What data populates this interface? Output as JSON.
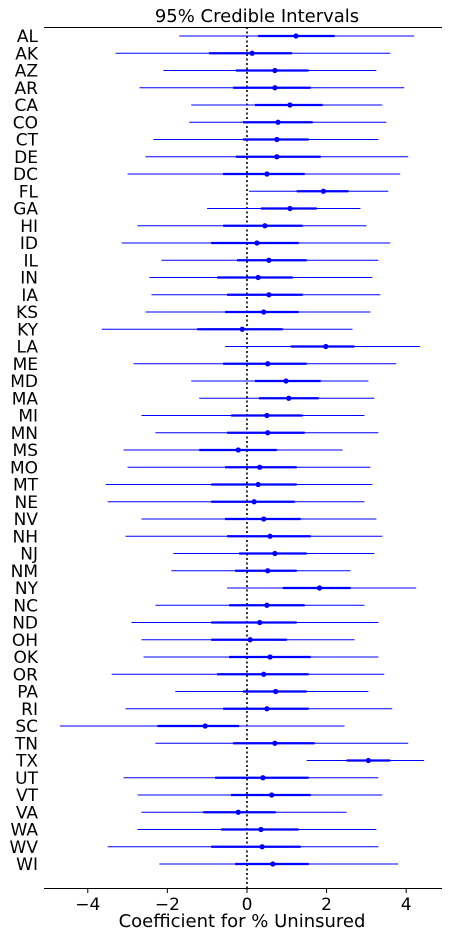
{
  "chart_data": {
    "type": "forest",
    "title": "95% Credible Intervals",
    "xlabel": "Coefficient for % Uninsured",
    "xlim": [
      -5.1,
      4.9
    ],
    "xticks": [
      -4,
      -2,
      0,
      2,
      4
    ],
    "xtick_labels": [
      "−4",
      "−2",
      "0",
      "2",
      "4"
    ],
    "reference_line_x": 0,
    "colors": {
      "interval": "#0000ff",
      "reference": "#000000"
    },
    "states": [
      {
        "label": "AL",
        "mean": 1.23,
        "inner": [
          0.28,
          2.2
        ],
        "outer": [
          -1.7,
          4.2
        ]
      },
      {
        "label": "AK",
        "mean": 0.13,
        "inner": [
          -0.95,
          1.13
        ],
        "outer": [
          -3.3,
          3.6
        ]
      },
      {
        "label": "AZ",
        "mean": 0.7,
        "inner": [
          -0.28,
          1.55
        ],
        "outer": [
          -2.1,
          3.25
        ]
      },
      {
        "label": "AR",
        "mean": 0.7,
        "inner": [
          -0.35,
          1.6
        ],
        "outer": [
          -2.7,
          3.95
        ]
      },
      {
        "label": "CA",
        "mean": 1.08,
        "inner": [
          0.2,
          1.9
        ],
        "outer": [
          -1.4,
          3.4
        ]
      },
      {
        "label": "CO",
        "mean": 0.78,
        "inner": [
          -0.1,
          1.65
        ],
        "outer": [
          -1.45,
          3.5
        ]
      },
      {
        "label": "CT",
        "mean": 0.75,
        "inner": [
          -0.1,
          1.55
        ],
        "outer": [
          -2.35,
          3.3
        ]
      },
      {
        "label": "DE",
        "mean": 0.75,
        "inner": [
          -0.28,
          1.85
        ],
        "outer": [
          -2.55,
          4.05
        ]
      },
      {
        "label": "DC",
        "mean": 0.5,
        "inner": [
          -0.6,
          1.45
        ],
        "outer": [
          -3.0,
          3.85
        ]
      },
      {
        "label": "FL",
        "mean": 1.92,
        "inner": [
          1.25,
          2.55
        ],
        "outer": [
          0.05,
          3.55
        ]
      },
      {
        "label": "GA",
        "mean": 1.08,
        "inner": [
          0.35,
          1.75
        ],
        "outer": [
          -1.0,
          2.85
        ]
      },
      {
        "label": "HI",
        "mean": 0.45,
        "inner": [
          -0.6,
          1.4
        ],
        "outer": [
          -2.75,
          3.0
        ]
      },
      {
        "label": "ID",
        "mean": 0.25,
        "inner": [
          -0.9,
          1.3
        ],
        "outer": [
          -3.15,
          3.6
        ]
      },
      {
        "label": "IL",
        "mean": 0.55,
        "inner": [
          -0.25,
          1.5
        ],
        "outer": [
          -2.15,
          3.3
        ]
      },
      {
        "label": "IN",
        "mean": 0.28,
        "inner": [
          -0.75,
          1.15
        ],
        "outer": [
          -2.45,
          3.15
        ]
      },
      {
        "label": "IA",
        "mean": 0.55,
        "inner": [
          -0.5,
          1.4
        ],
        "outer": [
          -2.4,
          3.35
        ]
      },
      {
        "label": "KS",
        "mean": 0.42,
        "inner": [
          -0.55,
          1.3
        ],
        "outer": [
          -2.55,
          3.1
        ]
      },
      {
        "label": "KY",
        "mean": -0.12,
        "inner": [
          -1.25,
          0.9
        ],
        "outer": [
          -3.65,
          2.65
        ]
      },
      {
        "label": "LA",
        "mean": 1.98,
        "inner": [
          1.1,
          2.7
        ],
        "outer": [
          -0.55,
          4.35
        ]
      },
      {
        "label": "ME",
        "mean": 0.52,
        "inner": [
          -0.6,
          1.5
        ],
        "outer": [
          -2.85,
          3.75
        ]
      },
      {
        "label": "MD",
        "mean": 0.98,
        "inner": [
          0.2,
          1.85
        ],
        "outer": [
          -1.4,
          3.05
        ]
      },
      {
        "label": "MA",
        "mean": 1.05,
        "inner": [
          0.3,
          1.8
        ],
        "outer": [
          -1.2,
          3.2
        ]
      },
      {
        "label": "MI",
        "mean": 0.5,
        "inner": [
          -0.4,
          1.4
        ],
        "outer": [
          -2.65,
          2.95
        ]
      },
      {
        "label": "MN",
        "mean": 0.52,
        "inner": [
          -0.5,
          1.45
        ],
        "outer": [
          -2.3,
          3.3
        ]
      },
      {
        "label": "MS",
        "mean": -0.22,
        "inner": [
          -1.2,
          0.75
        ],
        "outer": [
          -3.1,
          2.4
        ]
      },
      {
        "label": "MO",
        "mean": 0.32,
        "inner": [
          -0.55,
          1.25
        ],
        "outer": [
          -3.0,
          3.1
        ]
      },
      {
        "label": "MT",
        "mean": 0.28,
        "inner": [
          -0.9,
          1.25
        ],
        "outer": [
          -3.55,
          3.15
        ]
      },
      {
        "label": "NE",
        "mean": 0.18,
        "inner": [
          -0.9,
          1.2
        ],
        "outer": [
          -3.5,
          2.95
        ]
      },
      {
        "label": "NV",
        "mean": 0.42,
        "inner": [
          -0.55,
          1.35
        ],
        "outer": [
          -2.65,
          3.25
        ]
      },
      {
        "label": "NH",
        "mean": 0.58,
        "inner": [
          -0.5,
          1.6
        ],
        "outer": [
          -3.05,
          3.4
        ]
      },
      {
        "label": "NJ",
        "mean": 0.7,
        "inner": [
          -0.2,
          1.5
        ],
        "outer": [
          -1.85,
          3.2
        ]
      },
      {
        "label": "NM",
        "mean": 0.52,
        "inner": [
          -0.3,
          1.25
        ],
        "outer": [
          -1.9,
          2.6
        ]
      },
      {
        "label": "NY",
        "mean": 1.82,
        "inner": [
          0.9,
          2.6
        ],
        "outer": [
          -0.5,
          4.25
        ]
      },
      {
        "label": "NC",
        "mean": 0.5,
        "inner": [
          -0.45,
          1.45
        ],
        "outer": [
          -2.3,
          2.95
        ]
      },
      {
        "label": "ND",
        "mean": 0.32,
        "inner": [
          -0.9,
          1.25
        ],
        "outer": [
          -2.9,
          3.3
        ]
      },
      {
        "label": "OH",
        "mean": 0.08,
        "inner": [
          -0.9,
          1.0
        ],
        "outer": [
          -2.65,
          2.7
        ]
      },
      {
        "label": "OK",
        "mean": 0.58,
        "inner": [
          -0.45,
          1.6
        ],
        "outer": [
          -2.6,
          3.3
        ]
      },
      {
        "label": "OR",
        "mean": 0.42,
        "inner": [
          -0.75,
          1.55
        ],
        "outer": [
          -3.4,
          3.45
        ]
      },
      {
        "label": "PA",
        "mean": 0.72,
        "inner": [
          -0.1,
          1.5
        ],
        "outer": [
          -1.8,
          3.05
        ]
      },
      {
        "label": "RI",
        "mean": 0.5,
        "inner": [
          -0.6,
          1.55
        ],
        "outer": [
          -3.05,
          3.65
        ]
      },
      {
        "label": "SC",
        "mean": -1.05,
        "inner": [
          -2.25,
          -0.2
        ],
        "outer": [
          -4.7,
          2.45
        ]
      },
      {
        "label": "TN",
        "mean": 0.7,
        "inner": [
          -0.35,
          1.7
        ],
        "outer": [
          -2.3,
          4.05
        ]
      },
      {
        "label": "TX",
        "mean": 3.05,
        "inner": [
          2.5,
          3.6
        ],
        "outer": [
          1.5,
          4.45
        ]
      },
      {
        "label": "UT",
        "mean": 0.4,
        "inner": [
          -0.8,
          1.55
        ],
        "outer": [
          -3.1,
          3.3
        ]
      },
      {
        "label": "VT",
        "mean": 0.62,
        "inner": [
          -0.4,
          1.6
        ],
        "outer": [
          -2.75,
          3.4
        ]
      },
      {
        "label": "VA",
        "mean": -0.22,
        "inner": [
          -1.1,
          0.72
        ],
        "outer": [
          -2.65,
          2.5
        ]
      },
      {
        "label": "WA",
        "mean": 0.35,
        "inner": [
          -0.65,
          1.3
        ],
        "outer": [
          -2.75,
          3.25
        ]
      },
      {
        "label": "WV",
        "mean": 0.38,
        "inner": [
          -0.9,
          1.35
        ],
        "outer": [
          -3.5,
          3.3
        ]
      },
      {
        "label": "WI",
        "mean": 0.65,
        "inner": [
          -0.3,
          1.55
        ],
        "outer": [
          -2.2,
          3.8
        ]
      }
    ]
  }
}
